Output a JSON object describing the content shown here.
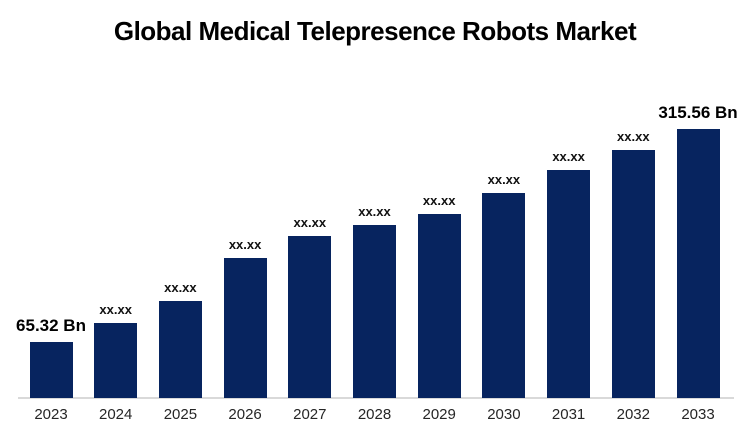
{
  "title": "Global Medical Telepresence Robots Market",
  "colors": {
    "bar": "#07245F",
    "axis_line": "#D9D9D9",
    "title_text": "#000000",
    "label_text": "#111111"
  },
  "chart_data": {
    "type": "bar",
    "title": "Global Medical Telepresence Robots Market",
    "categories": [
      "2023",
      "2024",
      "2025",
      "2026",
      "2027",
      "2028",
      "2029",
      "2030",
      "2031",
      "2032",
      "2033"
    ],
    "values": [
      65.32,
      88,
      114,
      164,
      190,
      203,
      216,
      240,
      267,
      291,
      315.56
    ],
    "value_labels": [
      "65.32 Bn",
      "xx.xx",
      "xx.xx",
      "xx.xx",
      "xx.xx",
      "xx.xx",
      "xx.xx",
      "xx.xx",
      "xx.xx",
      "xx.xx",
      "315.56 Bn"
    ],
    "unit": "Bn",
    "xlabel": "",
    "ylabel": "",
    "ylim": [
      0,
      315.56
    ],
    "grid": false,
    "legend_position": "none",
    "bar_color": "#07245F"
  }
}
